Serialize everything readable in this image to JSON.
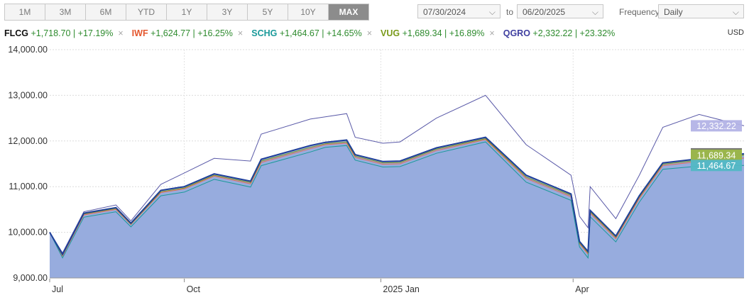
{
  "toolbar": {
    "ranges": [
      "1M",
      "3M",
      "6M",
      "YTD",
      "1Y",
      "3Y",
      "5Y",
      "10Y",
      "MAX"
    ],
    "active_range": "MAX",
    "start_date": "07/30/2024",
    "to_label": "to",
    "end_date": "06/20/2025",
    "frequency_label": "Frequency",
    "frequency_value": "Daily"
  },
  "legend": {
    "currency": "USD",
    "items": [
      {
        "symbol": "FLCG",
        "change": "+1,718.70 | +17.19%",
        "color": "#111111"
      },
      {
        "symbol": "IWF",
        "change": "+1,624.77 | +16.25%",
        "color": "#e4572e"
      },
      {
        "symbol": "SCHG",
        "change": "+1,464.67 | +14.65%",
        "color": "#1a9a9a"
      },
      {
        "symbol": "VUG",
        "change": "+1,689.34 | +16.89%",
        "color": "#7a9a1a"
      },
      {
        "symbol": "QGRO",
        "change": "+2,332.22 | +23.32%",
        "color": "#3f3fa0"
      }
    ]
  },
  "chart_data": {
    "type": "line",
    "ylim": [
      9000,
      14000
    ],
    "y_ticks": [
      "14,000.00",
      "13,000.00",
      "12,000.00",
      "11,000.00",
      "10,000.00",
      "9,000.00"
    ],
    "x_ticks": [
      {
        "label": "Jul",
        "date": "2024-07-30"
      },
      {
        "label": "Oct",
        "date": "2024-10-01"
      },
      {
        "label": "2025 Jan",
        "date": "2025-01-01"
      },
      {
        "label": "Apr",
        "date": "2025-04-01"
      }
    ],
    "x_range": [
      "2024-07-30",
      "2025-06-20"
    ],
    "series": [
      {
        "name": "FLCG",
        "color": "#1f3f9a",
        "area_fill": "#97acde",
        "x": [
          "2024-07-30",
          "2024-08-05",
          "2024-08-15",
          "2024-08-30",
          "2024-09-06",
          "2024-09-20",
          "2024-10-01",
          "2024-10-15",
          "2024-11-01",
          "2024-11-06",
          "2024-11-29",
          "2024-12-06",
          "2024-12-16",
          "2024-12-20",
          "2025-01-02",
          "2025-01-10",
          "2025-01-27",
          "2025-02-19",
          "2025-03-10",
          "2025-03-31",
          "2025-04-04",
          "2025-04-08",
          "2025-04-09",
          "2025-04-21",
          "2025-05-02",
          "2025-05-13",
          "2025-05-30",
          "2025-06-20"
        ],
        "values": [
          10000,
          9520,
          10420,
          10540,
          10200,
          10920,
          11000,
          11280,
          11120,
          11600,
          11900,
          11970,
          12020,
          11700,
          11550,
          11560,
          11850,
          12080,
          11250,
          10840,
          9800,
          9580,
          10480,
          9920,
          10800,
          11520,
          11610,
          11719
        ]
      },
      {
        "name": "IWF",
        "color": "#e86b5a",
        "x": [
          "2024-07-30",
          "2024-08-05",
          "2024-08-15",
          "2024-08-30",
          "2024-09-06",
          "2024-09-20",
          "2024-10-01",
          "2024-10-15",
          "2024-11-01",
          "2024-11-06",
          "2024-11-29",
          "2024-12-06",
          "2024-12-16",
          "2024-12-20",
          "2025-01-02",
          "2025-01-10",
          "2025-01-27",
          "2025-02-19",
          "2025-03-10",
          "2025-03-31",
          "2025-04-04",
          "2025-04-08",
          "2025-04-09",
          "2025-04-21",
          "2025-05-02",
          "2025-05-13",
          "2025-05-30",
          "2025-06-20"
        ],
        "values": [
          10000,
          9480,
          10380,
          10500,
          10170,
          10870,
          10950,
          11230,
          11060,
          11530,
          11830,
          11920,
          11950,
          11640,
          11490,
          11500,
          11790,
          12030,
          11180,
          10780,
          9750,
          9520,
          10420,
          9860,
          10740,
          11460,
          11550,
          11625
        ]
      },
      {
        "name": "SCHG",
        "color": "#1a9a9a",
        "x": [
          "2024-07-30",
          "2024-08-05",
          "2024-08-15",
          "2024-08-30",
          "2024-09-06",
          "2024-09-20",
          "2024-10-01",
          "2024-10-15",
          "2024-11-01",
          "2024-11-06",
          "2024-11-29",
          "2024-12-06",
          "2024-12-16",
          "2024-12-20",
          "2025-01-02",
          "2025-01-10",
          "2025-01-27",
          "2025-02-19",
          "2025-03-10",
          "2025-03-31",
          "2025-04-04",
          "2025-04-08",
          "2025-04-09",
          "2025-04-21",
          "2025-05-02",
          "2025-05-13",
          "2025-05-30",
          "2025-06-20"
        ],
        "values": [
          10000,
          9440,
          10330,
          10450,
          10120,
          10800,
          10880,
          11160,
          10990,
          11460,
          11760,
          11860,
          11900,
          11580,
          11430,
          11440,
          11730,
          11980,
          11100,
          10700,
          9680,
          9440,
          10340,
          9790,
          10660,
          11380,
          11450,
          11465
        ]
      },
      {
        "name": "VUG",
        "color": "#7a9a1a",
        "x": [
          "2024-07-30",
          "2024-08-05",
          "2024-08-15",
          "2024-08-30",
          "2024-09-06",
          "2024-09-20",
          "2024-10-01",
          "2024-10-15",
          "2024-11-01",
          "2024-11-06",
          "2024-11-29",
          "2024-12-06",
          "2024-12-16",
          "2024-12-20",
          "2025-01-02",
          "2025-01-10",
          "2025-01-27",
          "2025-02-19",
          "2025-03-10",
          "2025-03-31",
          "2025-04-04",
          "2025-04-08",
          "2025-04-09",
          "2025-04-21",
          "2025-05-02",
          "2025-05-13",
          "2025-05-30",
          "2025-06-20"
        ],
        "values": [
          10000,
          9500,
          10400,
          10520,
          10180,
          10890,
          10970,
          11250,
          11090,
          11560,
          11860,
          11940,
          11980,
          11670,
          11520,
          11530,
          11820,
          12050,
          11210,
          10810,
          9770,
          9550,
          10450,
          9890,
          10770,
          11490,
          11580,
          11689
        ]
      },
      {
        "name": "QGRO",
        "color": "#5a5aa8",
        "x": [
          "2024-07-30",
          "2024-08-05",
          "2024-08-15",
          "2024-08-30",
          "2024-09-06",
          "2024-09-20",
          "2024-10-01",
          "2024-10-15",
          "2024-11-01",
          "2024-11-06",
          "2024-11-29",
          "2024-12-06",
          "2024-12-16",
          "2024-12-20",
          "2025-01-02",
          "2025-01-10",
          "2025-01-27",
          "2025-02-19",
          "2025-03-10",
          "2025-03-31",
          "2025-04-04",
          "2025-04-08",
          "2025-04-09",
          "2025-04-21",
          "2025-05-02",
          "2025-05-13",
          "2025-05-30",
          "2025-06-20"
        ],
        "values": [
          10000,
          9550,
          10450,
          10600,
          10250,
          11050,
          11300,
          11620,
          11560,
          12150,
          12480,
          12530,
          12600,
          12080,
          11950,
          11980,
          12500,
          13000,
          11920,
          11250,
          10350,
          10100,
          11000,
          10300,
          11250,
          12300,
          12580,
          12332
        ]
      }
    ],
    "end_labels": [
      {
        "series": "QGRO",
        "text": "12,332.22",
        "color": "#b3b3e6",
        "value": 12332.22
      },
      {
        "series": "FLCG",
        "text": "11,718.70",
        "color": "#6d6d6d",
        "value": 11718.7
      },
      {
        "series": "VUG",
        "text": "11,689.34",
        "color": "#9cb84a",
        "value": 11689.34
      },
      {
        "series": "SCHG",
        "text": "11,464.67",
        "color": "#52b8c4",
        "value": 11464.67
      }
    ]
  }
}
